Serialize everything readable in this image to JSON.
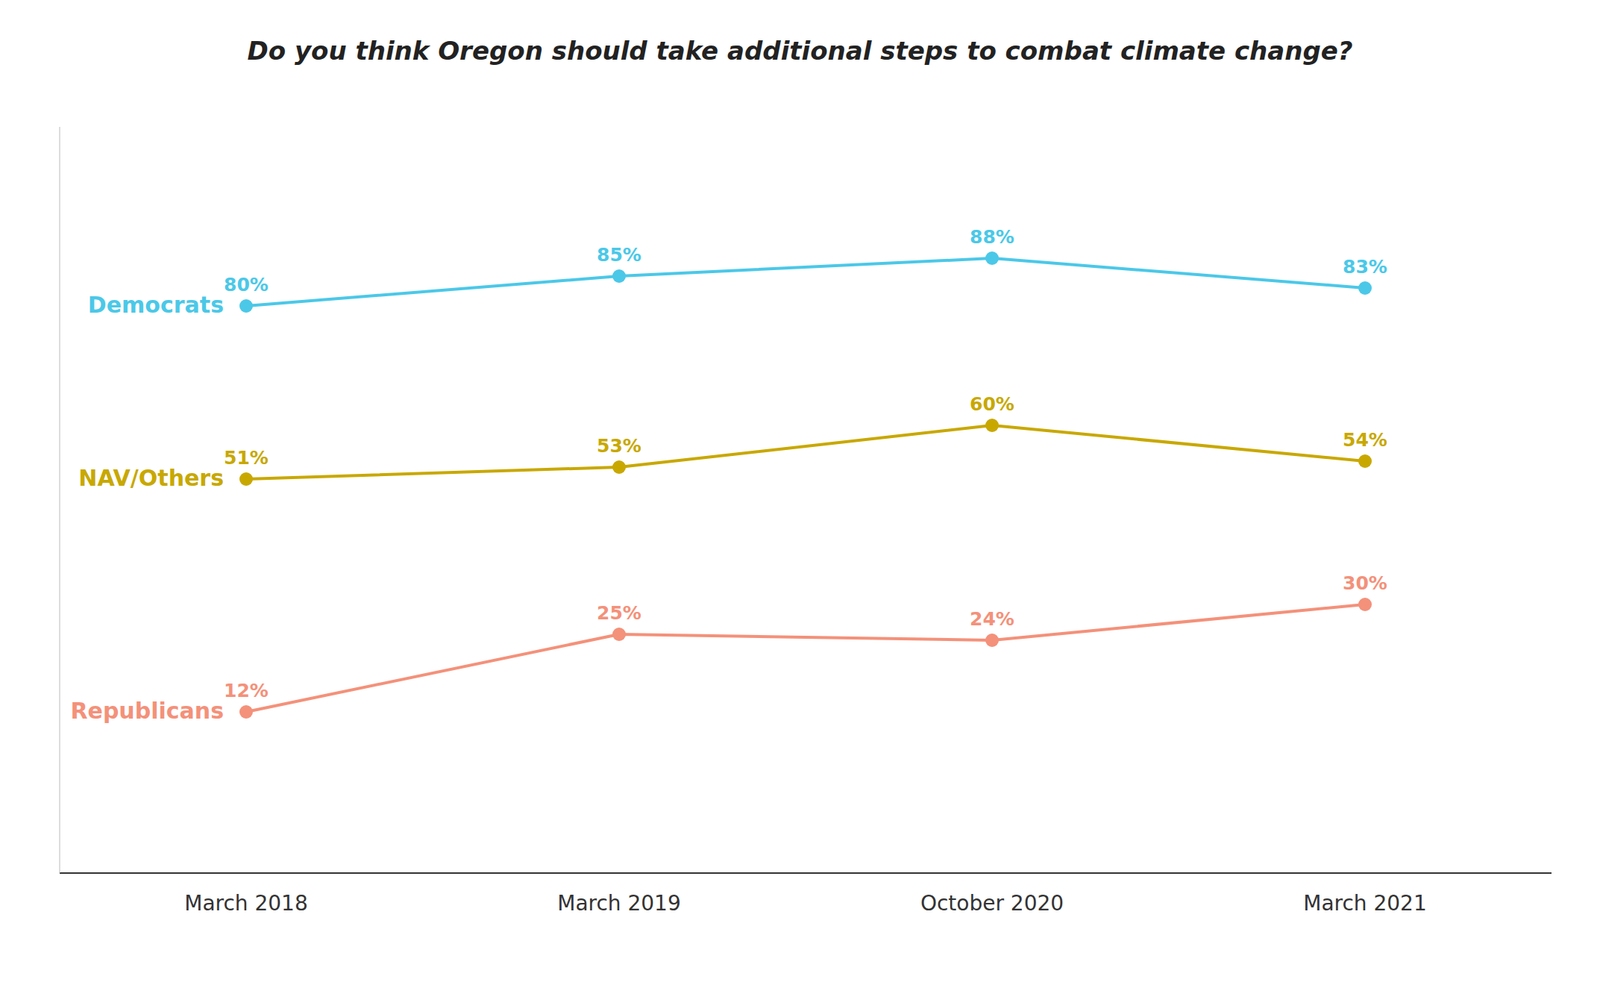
{
  "chart_data": {
    "type": "line",
    "title": "Do you think Oregon should take additional steps to combat climate change?",
    "categories": [
      "March 2018",
      "March 2019",
      "October 2020",
      "March 2021"
    ],
    "series": [
      {
        "name": "Democrats",
        "color": "#4BC8E8",
        "values": [
          80,
          85,
          88,
          83
        ],
        "value_labels": [
          "80%",
          "85%",
          "88%",
          "83%"
        ]
      },
      {
        "name": "NAV/Others",
        "color": "#C8A800",
        "values": [
          51,
          53,
          60,
          54
        ],
        "value_labels": [
          "51%",
          "53%",
          "60%",
          "54%"
        ]
      },
      {
        "name": "Republicans",
        "color": "#F4917A",
        "values": [
          12,
          25,
          24,
          30
        ],
        "value_labels": [
          "12%",
          "25%",
          "24%",
          "30%"
        ]
      }
    ],
    "ylim": [
      -15,
      110
    ],
    "data_labels": true,
    "tick_labels": "x",
    "marker": "circle",
    "grid": false
  }
}
